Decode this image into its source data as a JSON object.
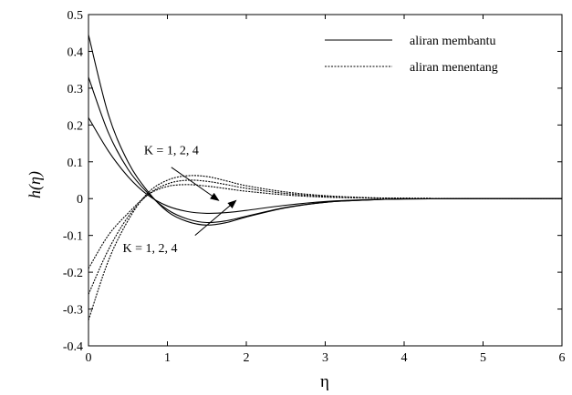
{
  "chart_data": {
    "type": "line",
    "xlabel": "η",
    "ylabel": "h(η)",
    "xlim": [
      0,
      6
    ],
    "ylim": [
      -0.4,
      0.5
    ],
    "x_ticks": [
      0,
      1,
      2,
      3,
      4,
      5,
      6
    ],
    "y_ticks": [
      -0.4,
      -0.3,
      -0.2,
      -0.1,
      0,
      0.1,
      0.2,
      0.3,
      0.4,
      0.5
    ],
    "x_tick_labels": [
      "0",
      "1",
      "2",
      "3",
      "4",
      "5",
      "6"
    ],
    "y_tick_labels": [
      "-0.4",
      "-0.3",
      "-0.2",
      "-0.1",
      "0",
      "0.1",
      "0.2",
      "0.3",
      "0.4",
      "0.5"
    ],
    "grid": false,
    "legend": {
      "position": "top-right",
      "entries": [
        {
          "label": "aliran membantu",
          "style": "solid"
        },
        {
          "label": "aliran menentang",
          "style": "dashed"
        }
      ]
    },
    "annotations": [
      {
        "text": "K = 1, 2, 4",
        "x": 1.05,
        "y": 0.12,
        "arrow_from": [
          1.05,
          0.085
        ],
        "arrow_to": [
          1.65,
          -0.005
        ]
      },
      {
        "text": "K = 1, 2, 4",
        "x": 0.78,
        "y": -0.145,
        "arrow_from": [
          1.35,
          -0.1
        ],
        "arrow_to": [
          1.87,
          -0.005
        ]
      }
    ],
    "series": [
      {
        "group": "aliran membantu",
        "style": "solid",
        "x": [
          0,
          0.25,
          0.5,
          0.75,
          1.0,
          1.25,
          1.5,
          1.75,
          2.0,
          2.5,
          3.0,
          3.5,
          4.0,
          5.0,
          6.0
        ],
        "y": [
          0.445,
          0.23,
          0.1,
          0.02,
          -0.035,
          -0.062,
          -0.072,
          -0.065,
          -0.05,
          -0.025,
          -0.01,
          -0.004,
          -0.001,
          0,
          0
        ]
      },
      {
        "group": "aliran membantu",
        "style": "solid",
        "x": [
          0,
          0.25,
          0.5,
          0.75,
          1.0,
          1.25,
          1.5,
          1.75,
          2.0,
          2.5,
          3.0,
          3.5,
          4.0,
          5.0,
          6.0
        ],
        "y": [
          0.33,
          0.18,
          0.08,
          0.015,
          -0.03,
          -0.055,
          -0.065,
          -0.06,
          -0.048,
          -0.024,
          -0.01,
          -0.004,
          -0.001,
          0,
          0
        ]
      },
      {
        "group": "aliran membantu",
        "style": "solid",
        "x": [
          0,
          0.25,
          0.5,
          0.75,
          1.0,
          1.25,
          1.5,
          1.75,
          2.0,
          2.5,
          3.0,
          3.5,
          4.0,
          5.0,
          6.0
        ],
        "y": [
          0.22,
          0.13,
          0.06,
          0.01,
          -0.02,
          -0.035,
          -0.04,
          -0.038,
          -0.032,
          -0.018,
          -0.008,
          -0.003,
          -0.001,
          0,
          0
        ]
      },
      {
        "group": "aliran menentang",
        "style": "dashed",
        "x": [
          0,
          0.25,
          0.5,
          0.75,
          1.0,
          1.25,
          1.5,
          1.75,
          2.0,
          2.5,
          3.0,
          3.5,
          4.0,
          5.0,
          6.0
        ],
        "y": [
          -0.19,
          -0.1,
          -0.04,
          0.01,
          0.033,
          0.038,
          0.034,
          0.027,
          0.02,
          0.01,
          0.004,
          0.002,
          0.001,
          0,
          0
        ]
      },
      {
        "group": "aliran menentang",
        "style": "dashed",
        "x": [
          0,
          0.25,
          0.5,
          0.75,
          1.0,
          1.25,
          1.5,
          1.75,
          2.0,
          2.5,
          3.0,
          3.5,
          4.0,
          5.0,
          6.0
        ],
        "y": [
          -0.26,
          -0.14,
          -0.05,
          0.01,
          0.04,
          0.05,
          0.047,
          0.038,
          0.028,
          0.014,
          0.006,
          0.002,
          0.001,
          0,
          0
        ]
      },
      {
        "group": "aliran menentang",
        "style": "dashed",
        "x": [
          0,
          0.25,
          0.5,
          0.75,
          1.0,
          1.25,
          1.5,
          1.75,
          2.0,
          2.5,
          3.0,
          3.5,
          4.0,
          5.0,
          6.0
        ],
        "y": [
          -0.33,
          -0.17,
          -0.06,
          0.015,
          0.05,
          0.062,
          0.06,
          0.048,
          0.035,
          0.018,
          0.008,
          0.003,
          0.001,
          0,
          0
        ]
      }
    ]
  }
}
